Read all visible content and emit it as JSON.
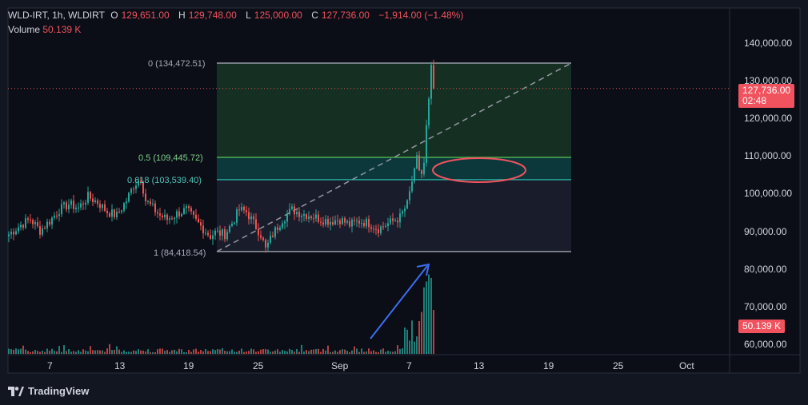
{
  "header": {
    "symbol": "WLD-IRT, 1h, WLDIRT",
    "open_label": "O",
    "open": "129,651.00",
    "high_label": "H",
    "high": "129,748.00",
    "low_label": "L",
    "low": "125,000.00",
    "close_label": "C",
    "close": "127,736.00",
    "change": "−1,914.00 (−1.48%)",
    "volume_label": "Volume",
    "volume": "50.139 K"
  },
  "price_axis": {
    "ticks": [
      "140,000.00",
      "130,000.00",
      "120,000.00",
      "110,000.00",
      "100,000.00",
      "90,000.00",
      "80,000.00",
      "70,000.00",
      "60,000.00"
    ],
    "current_price": "127,736.00",
    "countdown": "02:48",
    "volume_tag": "50.139 K"
  },
  "time_axis": {
    "ticks": [
      "7",
      "13",
      "19",
      "25",
      "Sep",
      "7",
      "13",
      "19",
      "25",
      "Oct"
    ]
  },
  "fib": {
    "level_0": "0 (134,472.51)",
    "level_05": "0.5 (109,445.72)",
    "level_0618": "0.618 (103,539.40)",
    "level_1": "1 (84,418.54)"
  },
  "branding": {
    "name": "TradingView"
  },
  "colors": {
    "background": "#121620",
    "up": "#26a69a",
    "down": "#ef5350",
    "fib_green": "#4caf50",
    "fib_teal": "#26a69a",
    "annotation_red": "#f0525e",
    "annotation_blue": "#3d6ef0"
  },
  "chart_data": {
    "type": "candlestick",
    "symbol": "WLD-IRT",
    "interval": "1h",
    "ylim": [
      57000,
      147000
    ],
    "x_ticks": [
      "7",
      "13",
      "19",
      "25",
      "Sep",
      "7",
      "13",
      "19",
      "25",
      "Oct"
    ],
    "price_path": [
      [
        0,
        89000
      ],
      [
        5,
        91500
      ],
      [
        9,
        93000
      ],
      [
        13,
        90000
      ],
      [
        17,
        92500
      ],
      [
        21,
        95500
      ],
      [
        25,
        97000
      ],
      [
        29,
        96000
      ],
      [
        33,
        99000
      ],
      [
        37,
        97500
      ],
      [
        41,
        95000
      ],
      [
        45,
        94000
      ],
      [
        49,
        98000
      ],
      [
        52,
        102000
      ],
      [
        55,
        104000
      ],
      [
        57,
        98000
      ],
      [
        60,
        96000
      ],
      [
        63,
        94000
      ],
      [
        66,
        93000
      ],
      [
        70,
        94500
      ],
      [
        74,
        95500
      ],
      [
        78,
        92500
      ],
      [
        81,
        90500
      ],
      [
        84,
        88500
      ],
      [
        86,
        89500
      ],
      [
        90,
        89000
      ],
      [
        93,
        92000
      ],
      [
        96,
        95500
      ],
      [
        99,
        95000
      ],
      [
        102,
        92000
      ],
      [
        105,
        89000
      ],
      [
        107,
        85000
      ],
      [
        110,
        89000
      ],
      [
        114,
        93000
      ],
      [
        118,
        95500
      ],
      [
        122,
        94500
      ],
      [
        126,
        94000
      ],
      [
        130,
        93000
      ],
      [
        134,
        92500
      ],
      [
        138,
        93000
      ],
      [
        142,
        91500
      ],
      [
        146,
        92500
      ],
      [
        150,
        92000
      ],
      [
        154,
        90500
      ],
      [
        157,
        91500
      ],
      [
        160,
        92500
      ],
      [
        163,
        93500
      ],
      [
        166,
        97000
      ],
      [
        168,
        103000
      ],
      [
        170,
        110000
      ],
      [
        171,
        106000
      ],
      [
        172,
        105000
      ],
      [
        173,
        108000
      ],
      [
        174,
        118000
      ],
      [
        175,
        125000
      ],
      [
        176,
        134000
      ],
      [
        177,
        127736
      ]
    ],
    "volume_profile": "low and flat until early September, spike on the final bars reaching the current 50.139 K",
    "fibonacci": [
      {
        "level": 0,
        "price": 134472.51
      },
      {
        "level": 0.5,
        "price": 109445.72
      },
      {
        "level": 0.618,
        "price": 103539.4
      },
      {
        "level": 1,
        "price": 84418.54
      }
    ],
    "last_price": 127736.0,
    "last_volume": "50.139 K",
    "grid": false
  }
}
